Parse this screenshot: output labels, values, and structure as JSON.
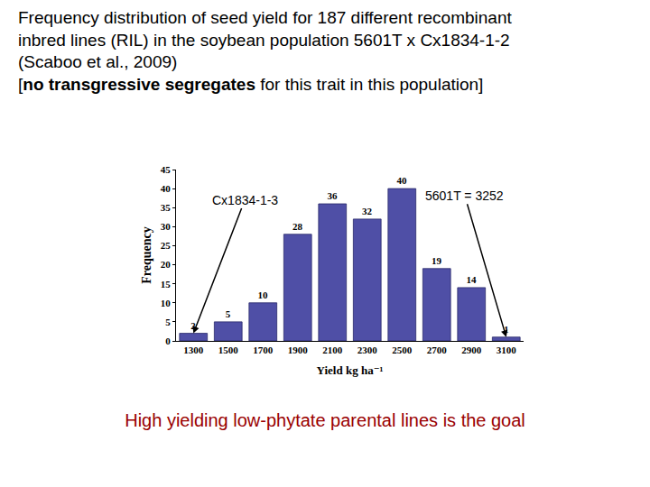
{
  "heading": {
    "lines": [
      [
        {
          "text": "Frequency distribution of seed yield for 187 different recombinant",
          "bold": false
        }
      ],
      [
        {
          "text": "inbred lines (RIL) in the soybean population 5601T x Cx1834-1-2",
          "bold": false
        }
      ],
      [
        {
          "text": "(Scaboo et al., 2009)",
          "bold": false
        }
      ],
      [
        {
          "text": "[",
          "bold": false
        },
        {
          "text": "no transgressive segregates",
          "bold": true
        },
        {
          "text": " for this trait in this population]",
          "bold": false
        }
      ]
    ]
  },
  "footer": "High yielding low-phytate parental lines is the goal",
  "chart_data": {
    "type": "bar",
    "x_label": "Yield kg ha⁻¹",
    "y_label": "Frequency",
    "categories": [
      "1300",
      "1500",
      "1700",
      "1900",
      "2100",
      "2300",
      "2500",
      "2700",
      "2900",
      "3100"
    ],
    "values": [
      2,
      5,
      10,
      28,
      36,
      32,
      40,
      19,
      14,
      1
    ],
    "color": "#4f4fa6",
    "ylim": [
      0,
      45
    ],
    "yticks": [
      0,
      5,
      10,
      15,
      20,
      25,
      30,
      35,
      40,
      45
    ],
    "grid": false,
    "data_labels": true,
    "annotations": [
      {
        "text": "Cx1834-1-3",
        "category": "1300"
      },
      {
        "text": "5601T = 3252",
        "category": "3100"
      }
    ]
  }
}
